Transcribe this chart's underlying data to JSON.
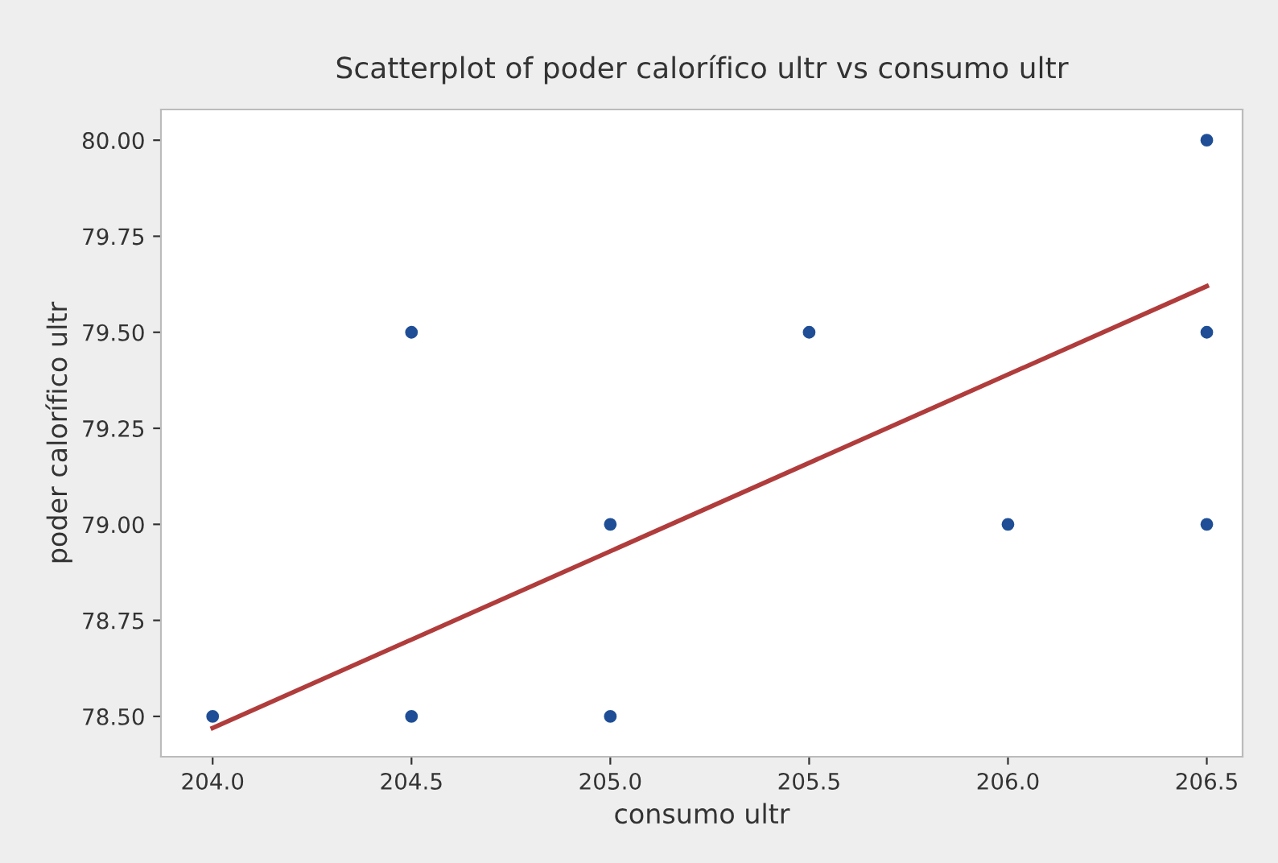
{
  "chart_data": {
    "type": "scatter",
    "title": "Scatterplot of poder calorífico ultr vs consumo ultr",
    "xlabel": "consumo ultr",
    "ylabel": "poder calorífico ultr",
    "series": [
      {
        "color": "#1f4e96",
        "marker": "circle",
        "x": [
          204.0,
          204.5,
          204.5,
          205.0,
          205.0,
          205.5,
          206.0,
          206.5,
          206.5,
          206.5
        ],
        "values": [
          78.5,
          79.5,
          78.5,
          79.0,
          78.5,
          79.5,
          79.0,
          80.0,
          79.5,
          79.0
        ]
      },
      {
        "type": "line",
        "color": "#b03c3c",
        "marker": "none",
        "line_style": "solid",
        "x": [
          204.0,
          206.5
        ],
        "values": [
          78.47,
          79.62
        ]
      }
    ],
    "xlim": [
      203.87,
      206.59
    ],
    "ylim": [
      78.395,
      80.08
    ],
    "xticks": [
      {
        "value": 204.0,
        "label": "204.0"
      },
      {
        "value": 204.5,
        "label": "204.5"
      },
      {
        "value": 205.0,
        "label": "205.0"
      },
      {
        "value": 205.5,
        "label": "205.5"
      },
      {
        "value": 206.0,
        "label": "206.0"
      },
      {
        "value": 206.5,
        "label": "206.5"
      }
    ],
    "yticks": [
      {
        "value": 78.5,
        "label": "78.50"
      },
      {
        "value": 78.75,
        "label": "78.75"
      },
      {
        "value": 79.0,
        "label": "79.00"
      },
      {
        "value": 79.25,
        "label": "79.25"
      },
      {
        "value": 79.5,
        "label": "79.50"
      },
      {
        "value": 79.75,
        "label": "79.75"
      },
      {
        "value": 80.0,
        "label": "80.00"
      }
    ],
    "grid": false,
    "legend": false
  }
}
